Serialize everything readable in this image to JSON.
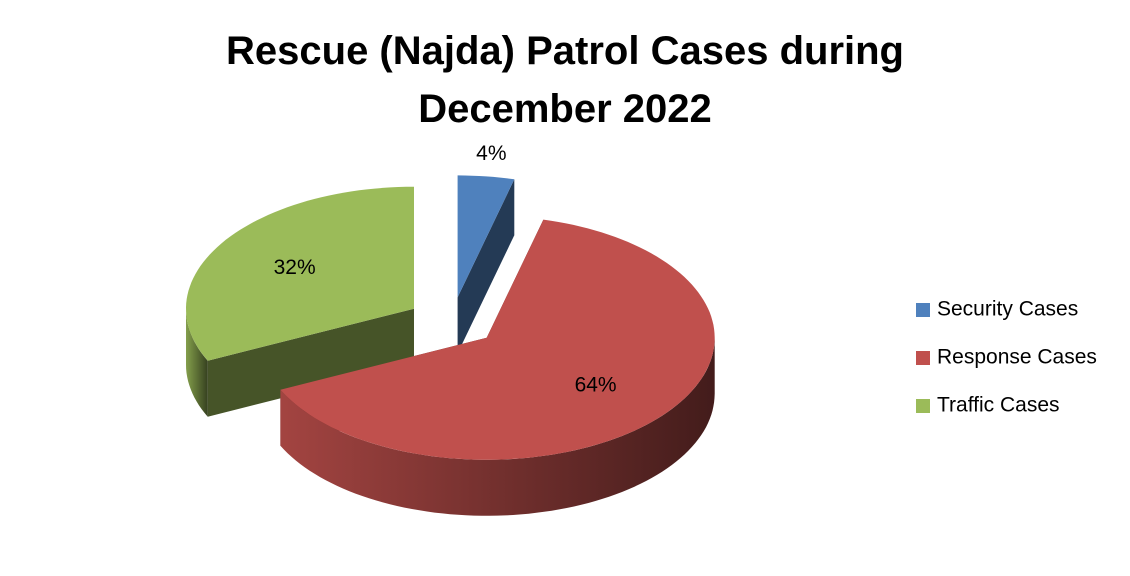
{
  "chart_data": {
    "type": "pie",
    "title": "Rescue (Najda) Patrol Cases during December 2022",
    "categories": [
      "Security Cases",
      "Response Cases",
      "Traffic Cases"
    ],
    "values": [
      4,
      64,
      32
    ],
    "value_labels": [
      "4%",
      "64%",
      "32%"
    ],
    "colors": [
      "#4f81bd",
      "#c0504d",
      "#9bbb59"
    ],
    "legend": "right"
  }
}
